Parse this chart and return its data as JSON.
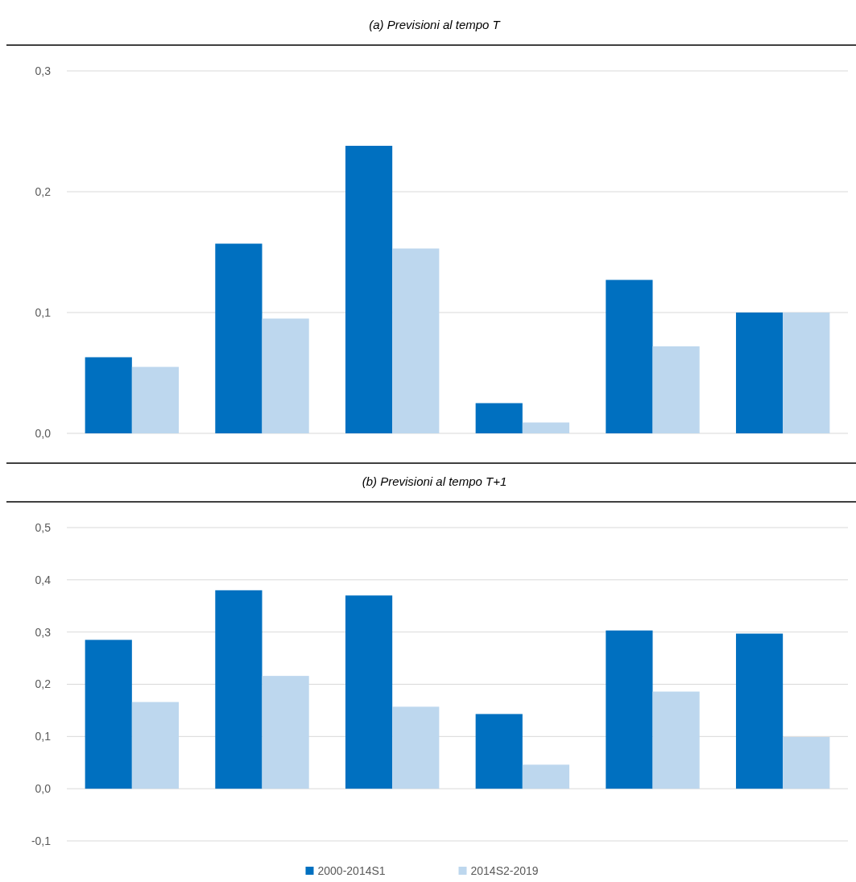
{
  "chart_data": [
    {
      "type": "bar",
      "title": "(a) Previsioni al tempo T",
      "categories": [
        null,
        null,
        null,
        null,
        null,
        null
      ],
      "series": [
        {
          "color": "#0070c0",
          "values": [
            0.063,
            0.157,
            0.238,
            0.025,
            0.127,
            0.1
          ]
        },
        {
          "color": "#bdd7ee",
          "values": [
            0.055,
            0.095,
            0.153,
            0.009,
            0.072,
            0.1
          ]
        }
      ],
      "ylim": [
        0,
        0.3
      ],
      "yticks": [
        {
          "value": 0,
          "label": "0,0"
        },
        {
          "value": 0.1,
          "label": "0,1"
        },
        {
          "value": 0.2,
          "label": "0,2"
        },
        {
          "value": 0.3,
          "label": "0,3"
        }
      ],
      "grid": "y",
      "legend": false
    },
    {
      "type": "bar",
      "title": "(b) Previsioni al tempo T+1",
      "categories": [
        null,
        null,
        null,
        null,
        null,
        null
      ],
      "series": [
        {
          "name": "2000-2014S1",
          "color": "#0070c0",
          "values": [
            0.285,
            0.38,
            0.37,
            0.143,
            0.303,
            0.297
          ]
        },
        {
          "name": "2014S2-2019",
          "color": "#bdd7ee",
          "values": [
            0.166,
            0.216,
            0.157,
            0.046,
            0.186,
            0.099
          ]
        }
      ],
      "ylim": [
        -0.1,
        0.5
      ],
      "yticks": [
        {
          "value": -0.1,
          "label": "-0,1"
        },
        {
          "value": 0,
          "label": "0,0"
        },
        {
          "value": 0.1,
          "label": "0,1"
        },
        {
          "value": 0.2,
          "label": "0,2"
        },
        {
          "value": 0.3,
          "label": "0,3"
        },
        {
          "value": 0.4,
          "label": "0,4"
        },
        {
          "value": 0.5,
          "label": "0,5"
        }
      ],
      "grid": "y",
      "legend": "bottom"
    }
  ]
}
